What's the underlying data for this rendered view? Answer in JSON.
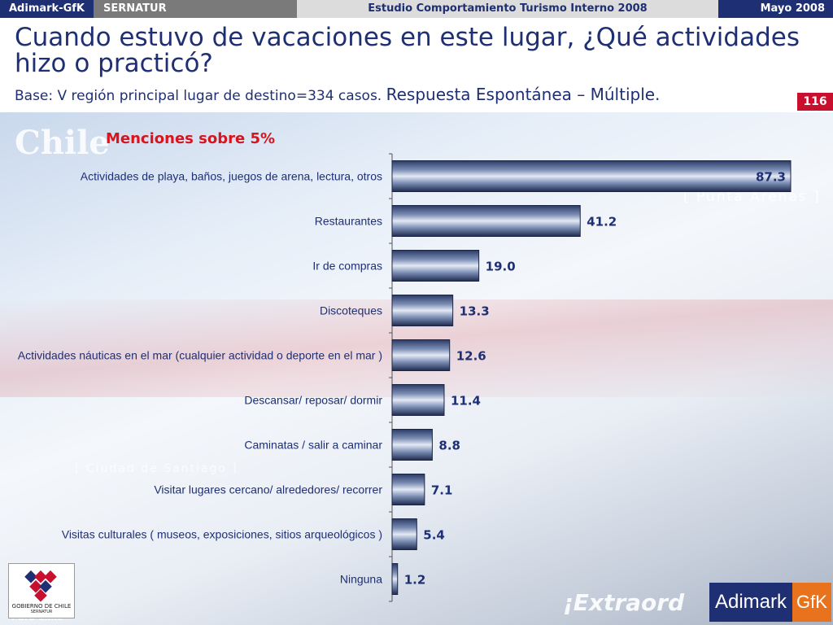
{
  "topbar": {
    "brand": "Adimark-GfK",
    "client": "SERNATUR",
    "study": "Estudio Comportamiento Turismo Interno 2008",
    "date": "Mayo 2008"
  },
  "title": "Cuando estuvo de vacaciones en este lugar, ¿Qué actividades hizo o practicó?",
  "subtitle": {
    "base": "Base: V región principal lugar de destino=334 casos.",
    "type": "Respuesta Espontánea – Múltiple."
  },
  "page_number": "116",
  "watermarks": {
    "chile": "Chile",
    "punta_arenas": "[ Punta Arenas ]",
    "santiago": "[ Ciudad de Santiago ]",
    "extraordinario": "¡Extraord",
    "puro_chile": "Puro Chile"
  },
  "logos": {
    "gobierno_line1": "GOBIERNO DE CHILE",
    "gobierno_line2": "SERNATUR",
    "adimark": "Adimark",
    "gfk": "GfK"
  },
  "colors": {
    "navy": "#1e2f73",
    "red": "#d8141e",
    "orange": "#e8731c"
  },
  "chart_data": {
    "type": "bar",
    "orientation": "horizontal",
    "title": "Menciones sobre 5%",
    "categories": [
      "Actividades de playa, baños, juegos de arena, lectura, otros",
      "Restaurantes",
      "Ir de compras",
      "Discoteques",
      "Actividades náuticas en el mar (cualquier actividad o deporte en el mar )",
      "Descansar/ reposar/ dormir",
      "Caminatas / salir a caminar",
      "Visitar lugares cercano/ alrededores/ recorrer",
      "Visitas culturales ( museos, exposiciones, sitios arqueológicos )",
      "Ninguna"
    ],
    "values": [
      87.3,
      41.2,
      19.0,
      13.3,
      12.6,
      11.4,
      8.8,
      7.1,
      5.4,
      1.2
    ],
    "value_labels": [
      "87.3",
      "41.2",
      "19.0",
      "13.3",
      "12.6",
      "11.4",
      "8.8",
      "7.1",
      "5.4",
      "1.2"
    ],
    "xlim": [
      0,
      90
    ],
    "grid": false
  }
}
